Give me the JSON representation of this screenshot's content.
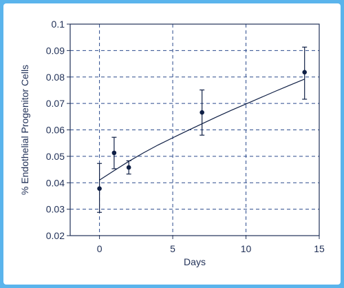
{
  "chart_data": {
    "type": "scatter",
    "xlabel": "Days",
    "ylabel": "% Endothelial Progenitor Cells",
    "xlim": [
      -2,
      15
    ],
    "ylim": [
      0.02,
      0.1
    ],
    "x_ticks": [
      0,
      5,
      10,
      15
    ],
    "y_ticks": [
      0.02,
      0.03,
      0.04,
      0.05,
      0.06,
      0.07,
      0.08,
      0.09,
      0.1
    ],
    "x_tick_labels": [
      "0",
      "5",
      "10",
      "15"
    ],
    "y_tick_labels": [
      "0.02",
      "0.03",
      "0.04",
      "0.05",
      "0.06",
      "0.07",
      "0.08",
      "0.09",
      "0.1"
    ],
    "grid": true,
    "series": [
      {
        "points": [
          {
            "x": 0,
            "y": 0.0378,
            "err_low": 0.0288,
            "err_high": 0.0473
          },
          {
            "x": 1,
            "y": 0.0513,
            "err_low": 0.0453,
            "err_high": 0.0572
          },
          {
            "x": 2,
            "y": 0.0458,
            "err_low": 0.0433,
            "err_high": 0.0483
          },
          {
            "x": 7,
            "y": 0.0666,
            "err_low": 0.058,
            "err_high": 0.0751
          },
          {
            "x": 14,
            "y": 0.0818,
            "err_low": 0.0716,
            "err_high": 0.0913
          }
        ]
      }
    ],
    "fit_curve": {
      "x": [
        0,
        1,
        2,
        3,
        4,
        5,
        6,
        7,
        8,
        9,
        10,
        11,
        12,
        13,
        14
      ],
      "y": [
        0.041,
        0.0446,
        0.0481,
        0.0513,
        0.0543,
        0.057,
        0.0597,
        0.0623,
        0.0649,
        0.0674,
        0.0698,
        0.0722,
        0.0746,
        0.0769,
        0.0792
      ]
    },
    "colors": {
      "axis": "#1f2f56",
      "grid": "#2b4a8c",
      "points": "#0f1f45",
      "background": "#5ab4ec"
    }
  }
}
